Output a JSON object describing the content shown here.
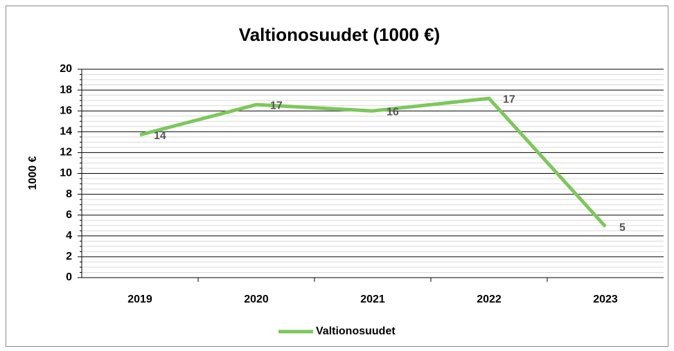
{
  "chart_data": {
    "type": "line",
    "title": "Valtionosuudet (1000 €)",
    "y_label": "1000 €",
    "categories": [
      "2019",
      "2020",
      "2021",
      "2022",
      "2023"
    ],
    "series": [
      {
        "name": "Valtionosuudet",
        "color": "#7dc75b",
        "values": [
          13.7,
          16.6,
          16.0,
          17.2,
          4.9
        ],
        "value_labels": [
          "14",
          "17",
          "16",
          "17",
          "5"
        ]
      }
    ],
    "ylim": [
      0,
      20
    ],
    "yticks": [
      0,
      2,
      4,
      6,
      8,
      10,
      12,
      14,
      16,
      18,
      20
    ],
    "grid": true,
    "minor_grid": true,
    "legend": "bottom"
  }
}
